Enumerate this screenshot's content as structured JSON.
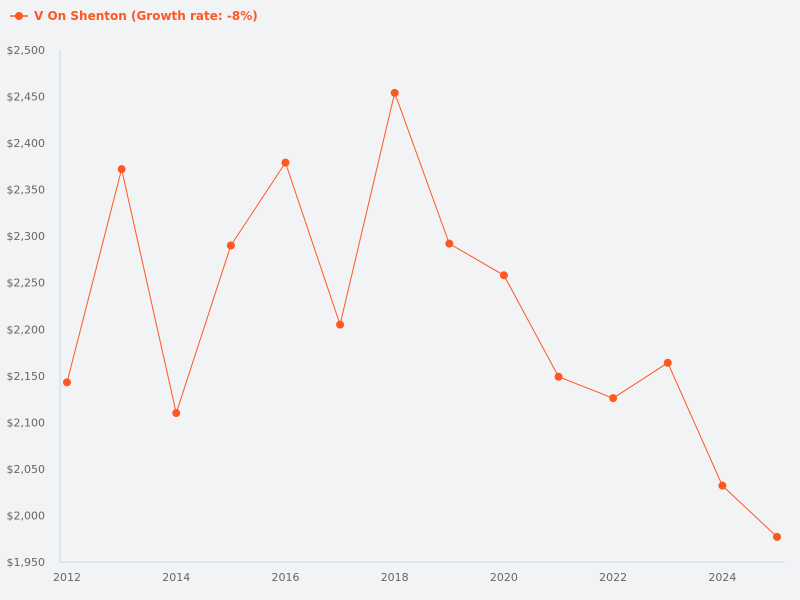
{
  "colors": {
    "series": "#ff5722",
    "axis": "#ccd6eb",
    "tick_text": "#666666",
    "background": "#f2f3f5"
  },
  "chart_data": {
    "type": "line",
    "title": "",
    "xlabel": "",
    "ylabel": "",
    "legend_position": "top-left",
    "grid": false,
    "x": [
      2012,
      2013,
      2014,
      2015,
      2016,
      2017,
      2018,
      2019,
      2020,
      2021,
      2022,
      2023,
      2024,
      2025
    ],
    "series": [
      {
        "name": "V On Shenton (Growth rate: -8%)",
        "values": [
          2143,
          2372,
          2110,
          2290,
          2379,
          2205,
          2454,
          2292,
          2258,
          2149,
          2126,
          2164,
          2032,
          1977
        ]
      }
    ],
    "xlim": [
      2012,
      2025
    ],
    "ylim": [
      1950,
      2500
    ],
    "x_ticks": [
      "2012",
      "2014",
      "2016",
      "2018",
      "2020",
      "2022",
      "2024"
    ],
    "y_ticks": [
      "$1,950",
      "$2,000",
      "$2,050",
      "$2,100",
      "$2,150",
      "$2,200",
      "$2,250",
      "$2,300",
      "$2,350",
      "$2,400",
      "$2,450",
      "$2,500"
    ]
  }
}
